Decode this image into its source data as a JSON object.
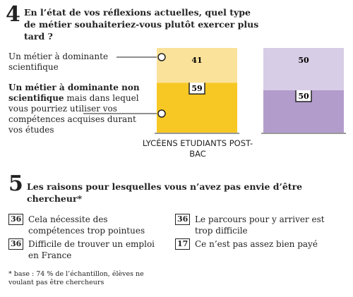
{
  "section4": {
    "number": "4",
    "question": "En l’état de vos réflexions actuelles, quel type de métier souhaiteriez-vous plutôt exercer plus tard ?"
  },
  "chart_data": {
    "type": "bar",
    "stacked": true,
    "categories": [
      "LYCÉENS",
      "ETUDIANTS POST-BAC"
    ],
    "series": [
      {
        "name": "Un métier à dominante non scientifique",
        "name_rest": "mais dans lequel vous pourriez utiliser vos compétences acquises durant vos études",
        "colors": [
          "#f7c823",
          "#b29ccc"
        ],
        "values": [
          59,
          50
        ]
      },
      {
        "name": "Un métier à dominante scientifique",
        "colors": [
          "#fbe29b",
          "#d8cde6"
        ],
        "values": [
          41,
          50
        ]
      }
    ],
    "ylim": [
      0,
      100
    ]
  },
  "section5": {
    "number": "5",
    "title": "Les raisons pour lesquelles vous n’avez pas envie d’être chercheur*",
    "items": [
      {
        "value": 36,
        "label": "Cela nécessite des compétences trop pointues"
      },
      {
        "value": 36,
        "label": "Difficile de trouver un emploi en France"
      },
      {
        "value": 36,
        "label": "Le parcours pour y arriver est trop difficile"
      },
      {
        "value": 17,
        "label": "Ce n’est pas assez bien payé"
      }
    ],
    "footnote": "* base : 74 % de l’échantillon, élèves ne voulant pas être chercheurs"
  }
}
